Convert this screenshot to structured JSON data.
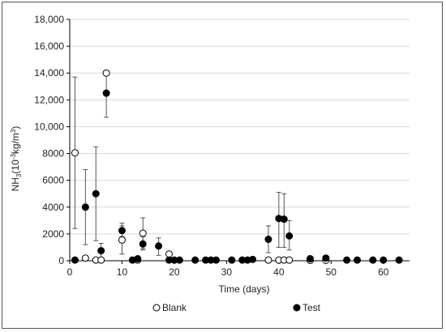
{
  "chart_data": {
    "type": "scatter",
    "xlabel": "Time (days)",
    "ylabel_main": "NH",
    "ylabel_sub": "3",
    "ylabel_rest": "(10",
    "ylabel_exp": "-3",
    "ylabel_unit": "kg/m",
    "ylabel_unit_exp": "3",
    "ylabel_close": ")",
    "xlim": [
      0,
      65
    ],
    "ylim": [
      0,
      18000
    ],
    "x_ticks": [
      0,
      10,
      20,
      30,
      40,
      50,
      60
    ],
    "y_ticks": [
      0,
      2000,
      4000,
      6000,
      8000,
      10000,
      12000,
      14000,
      16000,
      18000
    ],
    "y_tick_labels": [
      "0",
      "2000",
      "4000",
      "6000",
      "8000",
      "10,000",
      "12,000",
      "14,000",
      "16,000",
      "18,000"
    ],
    "grid": "horizontal",
    "legend_position": "bottom",
    "series": [
      {
        "name": "Blank",
        "marker": "open-circle",
        "color": "#000000",
        "points": [
          {
            "x": 1,
            "y": 8050,
            "lo": 2400,
            "hi": 13700
          },
          {
            "x": 3,
            "y": 200
          },
          {
            "x": 5,
            "y": 50
          },
          {
            "x": 6,
            "y": 50
          },
          {
            "x": 7,
            "y": 14000
          },
          {
            "x": 10,
            "y": 1550,
            "lo": 500,
            "hi": 2600
          },
          {
            "x": 13,
            "y": 50
          },
          {
            "x": 14,
            "y": 2050,
            "lo": 900,
            "hi": 3200
          },
          {
            "x": 19,
            "y": 500
          },
          {
            "x": 38,
            "y": 50
          },
          {
            "x": 40,
            "y": 50
          },
          {
            "x": 41,
            "y": 50
          },
          {
            "x": 42,
            "y": 50
          },
          {
            "x": 46,
            "y": 30
          },
          {
            "x": 49,
            "y": 30
          }
        ]
      },
      {
        "name": "Test",
        "marker": "filled-circle",
        "color": "#000000",
        "points": [
          {
            "x": 1,
            "y": 50
          },
          {
            "x": 3,
            "y": 4000,
            "lo": 1200,
            "hi": 6800
          },
          {
            "x": 5,
            "y": 5000,
            "lo": 1500,
            "hi": 8500
          },
          {
            "x": 6,
            "y": 750,
            "lo": 200,
            "hi": 1300
          },
          {
            "x": 7,
            "y": 12500,
            "lo": 10700,
            "hi": 14000
          },
          {
            "x": 10,
            "y": 2250,
            "lo": 1800,
            "hi": 2800
          },
          {
            "x": 12,
            "y": 50
          },
          {
            "x": 13,
            "y": 150
          },
          {
            "x": 14,
            "y": 1250,
            "lo": 800,
            "hi": 1800
          },
          {
            "x": 17,
            "y": 1100,
            "lo": 400,
            "hi": 1700
          },
          {
            "x": 19,
            "y": 50
          },
          {
            "x": 20,
            "y": 50
          },
          {
            "x": 21,
            "y": 50
          },
          {
            "x": 24,
            "y": 50
          },
          {
            "x": 26,
            "y": 50
          },
          {
            "x": 27,
            "y": 50
          },
          {
            "x": 28,
            "y": 50
          },
          {
            "x": 31,
            "y": 50
          },
          {
            "x": 33,
            "y": 50
          },
          {
            "x": 34,
            "y": 50
          },
          {
            "x": 35,
            "y": 100
          },
          {
            "x": 38,
            "y": 1600,
            "lo": 600,
            "hi": 2600
          },
          {
            "x": 40,
            "y": 3150,
            "lo": 1000,
            "hi": 5100
          },
          {
            "x": 41,
            "y": 3100,
            "lo": 1000,
            "hi": 5000
          },
          {
            "x": 42,
            "y": 1850,
            "lo": 800,
            "hi": 3000
          },
          {
            "x": 46,
            "y": 150
          },
          {
            "x": 49,
            "y": 200
          },
          {
            "x": 53,
            "y": 50
          },
          {
            "x": 55,
            "y": 50
          },
          {
            "x": 58,
            "y": 50
          },
          {
            "x": 60,
            "y": 50
          },
          {
            "x": 63,
            "y": 50
          }
        ]
      }
    ]
  }
}
